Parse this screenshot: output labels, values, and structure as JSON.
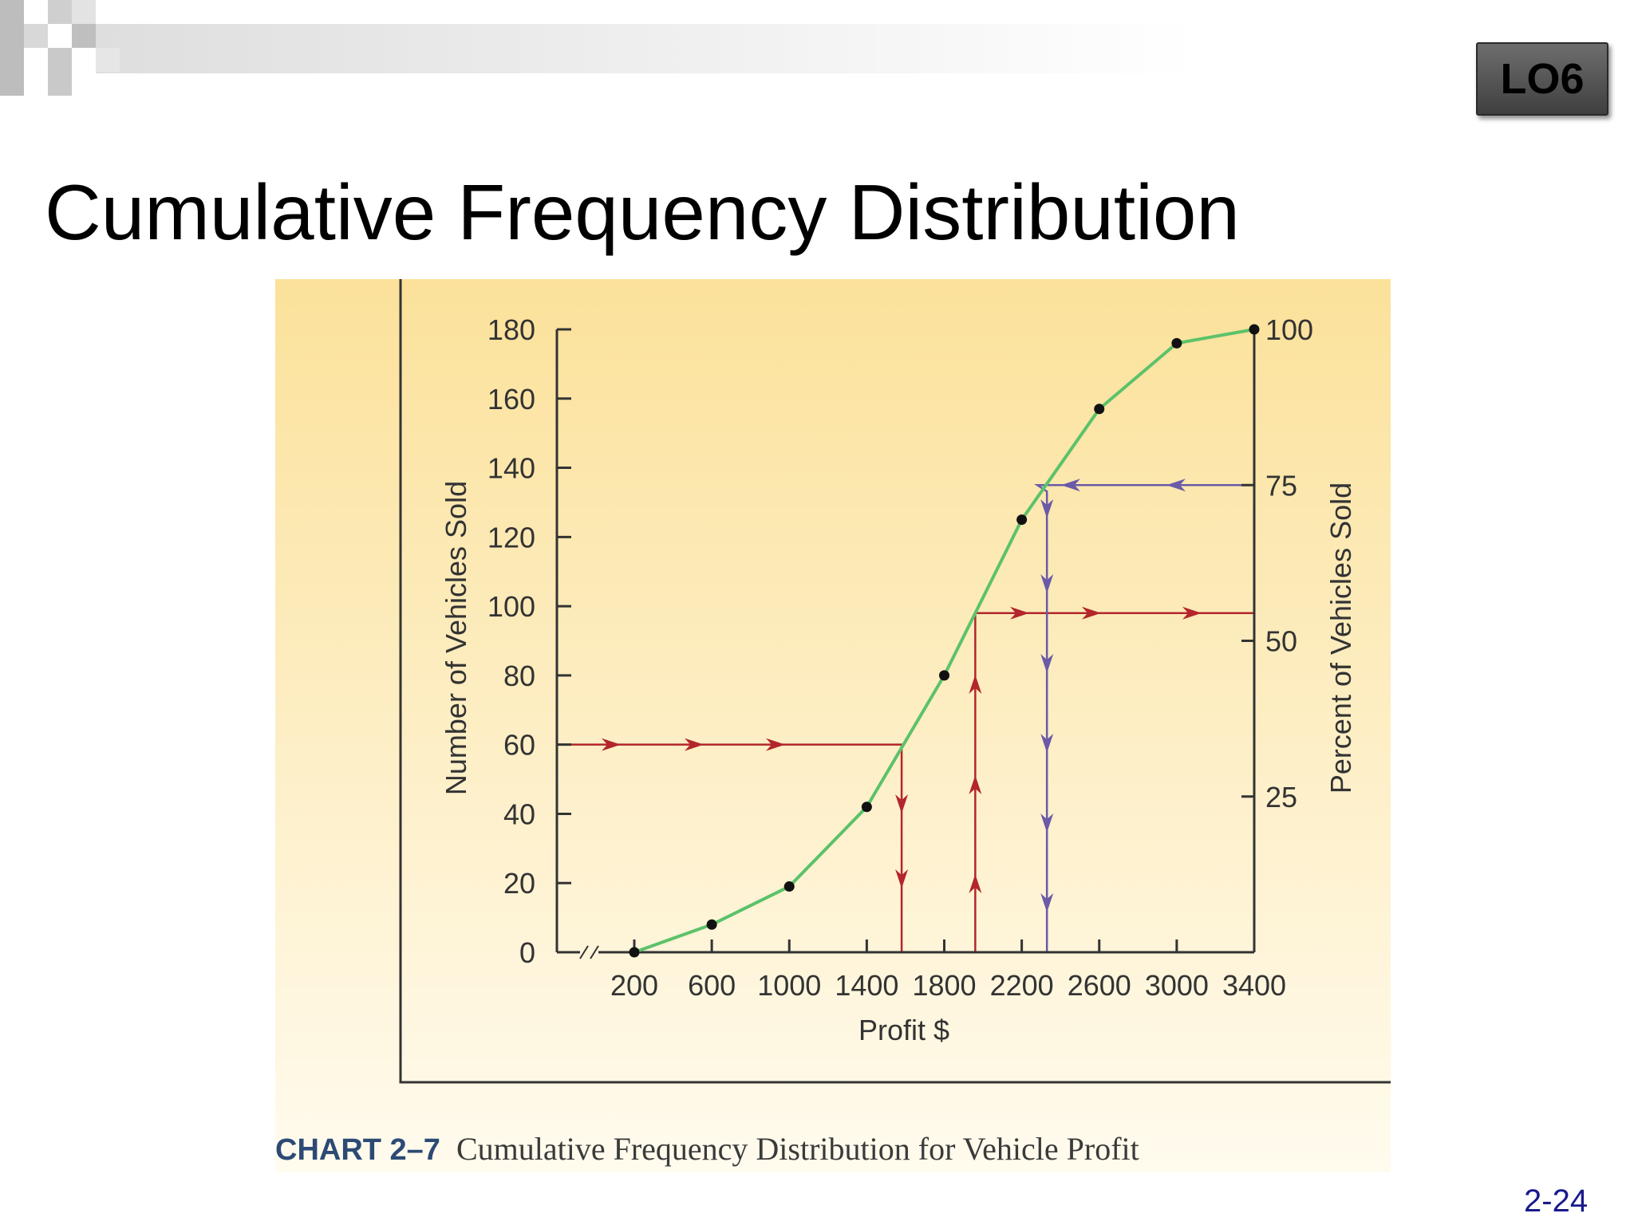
{
  "badge": "LO6",
  "title": "Cumulative Frequency Distribution",
  "page_number": "2-24",
  "caption": {
    "label": "CHART 2–7",
    "text": "Cumulative Frequency Distribution for Vehicle Profit"
  },
  "colors": {
    "panel_light": "#fffbee",
    "panel_dark": "#fbe19a",
    "curve": "#5cc26a",
    "red_guide": "#b3262b",
    "purple_guide": "#6a5aa8"
  },
  "chart_data": {
    "type": "line",
    "title": "",
    "xlabel": "Profit $",
    "ylabel": "Number of Vehicles Sold",
    "y2label": "Percent of Vehicles Sold",
    "x_ticks": [
      200,
      600,
      1000,
      1400,
      1800,
      2200,
      2600,
      3000,
      3400
    ],
    "y_ticks": [
      0,
      20,
      40,
      60,
      80,
      100,
      120,
      140,
      160,
      180
    ],
    "y2_ticks": [
      25,
      50,
      75,
      100
    ],
    "xlim": [
      0,
      3400
    ],
    "ylim": [
      0,
      180
    ],
    "y2lim": [
      0,
      100
    ],
    "axis_break": true,
    "series": [
      {
        "x": [
          200,
          600,
          1000,
          1400,
          1800,
          2200,
          2600,
          3000,
          3400
        ],
        "y": [
          0,
          8,
          19,
          42,
          80,
          125,
          157,
          176,
          180
        ]
      }
    ],
    "guides": [
      {
        "color": "red",
        "y": 60,
        "x": 1580,
        "direction": "across-then-down"
      },
      {
        "color": "red",
        "y": 98,
        "x": 1960,
        "direction": "up-then-across"
      },
      {
        "color": "purple",
        "y": 135,
        "x": 2330,
        "direction": "across-then-down"
      }
    ]
  }
}
